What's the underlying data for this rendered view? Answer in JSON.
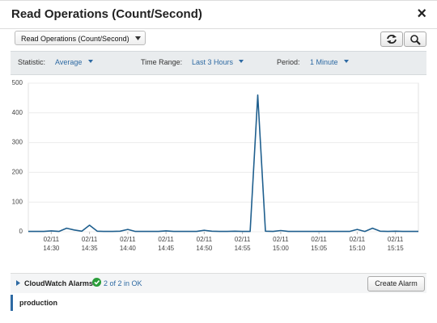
{
  "dialog": {
    "title": "Read Operations (Count/Second)",
    "close": "×"
  },
  "metric_select": "Read Operations (Count/Second)",
  "toolbar": {
    "statistic_label": "Statistic:",
    "statistic": "Average",
    "range_label": "Time Range:",
    "range": "Last 3 Hours",
    "period_label": "Period:",
    "period": "1 Minute"
  },
  "alarms": {
    "label": "CloudWatch Alarms:",
    "status": "2 of 2 in OK",
    "button": "Create Alarm",
    "items": [
      "production"
    ]
  },
  "chart_data": {
    "type": "line",
    "color": "#1f5f8e",
    "grid": true,
    "x": [
      "02/11 14:27",
      "02/11 14:28",
      "02/11 14:29",
      "02/11 14:30",
      "02/11 14:31",
      "02/11 14:32",
      "02/11 14:33",
      "02/11 14:34",
      "02/11 14:35",
      "02/11 14:36",
      "02/11 14:37",
      "02/11 14:38",
      "02/11 14:39",
      "02/11 14:40",
      "02/11 14:41",
      "02/11 14:42",
      "02/11 14:43",
      "02/11 14:44",
      "02/11 14:45",
      "02/11 14:46",
      "02/11 14:47",
      "02/11 14:48",
      "02/11 14:49",
      "02/11 14:50",
      "02/11 14:51",
      "02/11 14:52",
      "02/11 14:53",
      "02/11 14:54",
      "02/11 14:55",
      "02/11 14:56",
      "02/11 14:57",
      "02/11 14:58",
      "02/11 14:59",
      "02/11 15:00",
      "02/11 15:01",
      "02/11 15:02",
      "02/11 15:03",
      "02/11 15:04",
      "02/11 15:05",
      "02/11 15:06",
      "02/11 15:07",
      "02/11 15:08",
      "02/11 15:09",
      "02/11 15:10",
      "02/11 15:11",
      "02/11 15:12",
      "02/11 15:13",
      "02/11 15:14",
      "02/11 15:15",
      "02/11 15:16",
      "02/11 15:17",
      "02/11 15:18"
    ],
    "values": [
      1,
      1,
      1,
      3,
      1,
      12,
      6,
      2,
      22,
      2,
      1,
      1,
      2,
      8,
      1,
      1,
      1,
      1,
      3,
      1,
      1,
      1,
      1,
      5,
      2,
      1,
      1,
      2,
      1,
      1,
      460,
      2,
      1,
      4,
      1,
      1,
      1,
      1,
      1,
      1,
      1,
      1,
      1,
      8,
      1,
      12,
      2,
      1,
      2,
      1,
      1,
      1
    ],
    "xlim": [
      "02/11 14:27",
      "02/11 15:18"
    ],
    "xticks": [
      {
        "value": "02/11 14:30",
        "label": "02/11\n14:30"
      },
      {
        "value": "02/11 14:35",
        "label": "02/11\n14:35"
      },
      {
        "value": "02/11 14:40",
        "label": "02/11\n14:40"
      },
      {
        "value": "02/11 14:45",
        "label": "02/11\n14:45"
      },
      {
        "value": "02/11 14:50",
        "label": "02/11\n14:50"
      },
      {
        "value": "02/11 14:55",
        "label": "02/11\n14:55"
      },
      {
        "value": "02/11 15:00",
        "label": "02/11\n15:00"
      },
      {
        "value": "02/11 15:05",
        "label": "02/11\n15:05"
      },
      {
        "value": "02/11 15:10",
        "label": "02/11\n15:10"
      },
      {
        "value": "02/11 15:15",
        "label": "02/11\n15:15"
      }
    ],
    "ylim": [
      0,
      500
    ],
    "yticks": [
      0,
      100,
      200,
      300,
      400,
      500
    ]
  }
}
